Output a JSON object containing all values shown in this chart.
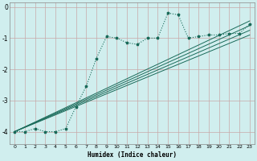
{
  "xlabel": "Humidex (Indice chaleur)",
  "background_color": "#d0eeee",
  "grid_color": "#c0d8d8",
  "line_color": "#1a6b5a",
  "xlim": [
    -0.5,
    23.5
  ],
  "ylim": [
    -4.4,
    0.15
  ],
  "yticks": [
    0,
    -1,
    -2,
    -3,
    -4
  ],
  "xticks": [
    0,
    1,
    2,
    3,
    4,
    5,
    6,
    7,
    8,
    9,
    10,
    11,
    12,
    13,
    14,
    15,
    16,
    17,
    18,
    19,
    20,
    21,
    22,
    23
  ],
  "curve_x": [
    0,
    1,
    2,
    3,
    4,
    5,
    6,
    7,
    8,
    9,
    10,
    11,
    12,
    13,
    14,
    15,
    16,
    17,
    18,
    19,
    20,
    21,
    22,
    23
  ],
  "curve_y": [
    -4.0,
    -4.0,
    -3.9,
    -4.0,
    -4.0,
    -3.9,
    -3.2,
    -2.55,
    -1.65,
    -0.95,
    -1.0,
    -1.15,
    -1.2,
    -1.0,
    -1.0,
    -0.2,
    -0.25,
    -1.0,
    -0.95,
    -0.9,
    -0.9,
    -0.85,
    -0.85,
    -0.55
  ],
  "straight_lines": [
    {
      "x": [
        0,
        23
      ],
      "y": [
        -4.0,
        -0.45
      ]
    },
    {
      "x": [
        0,
        23
      ],
      "y": [
        -4.0,
        -0.6
      ]
    },
    {
      "x": [
        0,
        23
      ],
      "y": [
        -4.0,
        -0.75
      ]
    },
    {
      "x": [
        0,
        23
      ],
      "y": [
        -4.0,
        -0.9
      ]
    }
  ]
}
